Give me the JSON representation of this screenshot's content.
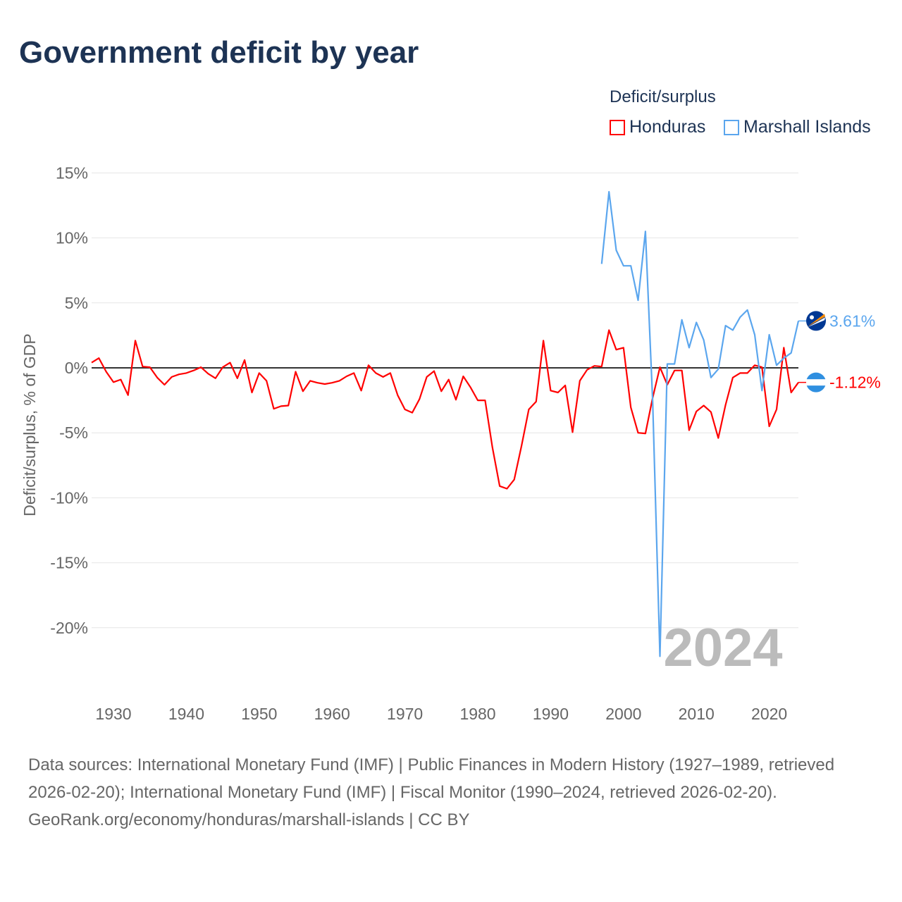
{
  "title": "Government deficit by year",
  "legend": {
    "title": "Deficit/surplus",
    "items": [
      {
        "label": "Honduras",
        "color": "#ff0000"
      },
      {
        "label": "Marshall Islands",
        "color": "#5ba6ee"
      }
    ]
  },
  "footer": {
    "sources": "Data sources: International Monetary Fund (IMF) | Public Finances in Modern History (1927–1989, retrieved 2026-02-20); International Monetary Fund (IMF) | Fiscal Monitor (1990–2024, retrieved 2026-02-20).",
    "credit": "GeoRank.org/economy/honduras/marshall-islands | CC BY"
  },
  "chart_data": {
    "type": "line",
    "title": "Government deficit by year",
    "xlabel": "",
    "ylabel": "Deficit/surplus, % of GDP",
    "xlim": [
      1927,
      2024
    ],
    "ylim": [
      -24,
      16
    ],
    "x_ticks": [
      1930,
      1940,
      1950,
      1960,
      1970,
      1980,
      1990,
      2000,
      2010,
      2020
    ],
    "y_ticks": [
      15,
      10,
      5,
      0,
      -5,
      -10,
      -15,
      -20
    ],
    "y_tick_labels": [
      "15%",
      "10%",
      "5%",
      "0%",
      "-5%",
      "-10%",
      "-15%",
      "-20%"
    ],
    "grid": true,
    "legend_position": "top-right",
    "year_label": "2024",
    "series": [
      {
        "name": "Honduras",
        "color": "#ff0000",
        "start_year": 1927,
        "end_label": "-1.12%",
        "values": [
          0.4,
          0.75,
          -0.3,
          -1.1,
          -0.9,
          -2.1,
          2.1,
          0.1,
          0.05,
          -0.75,
          -1.3,
          -0.7,
          -0.5,
          -0.4,
          -0.2,
          0.05,
          -0.45,
          -0.8,
          0.05,
          0.4,
          -0.8,
          0.6,
          -1.9,
          -0.4,
          -1.0,
          -3.15,
          -2.95,
          -2.9,
          -0.3,
          -1.8,
          -1.0,
          -1.15,
          -1.25,
          -1.15,
          -1.0,
          -0.65,
          -0.4,
          -1.75,
          0.2,
          -0.4,
          -0.7,
          -0.4,
          -2.1,
          -3.2,
          -3.45,
          -2.4,
          -0.7,
          -0.25,
          -1.8,
          -0.9,
          -2.45,
          -0.65,
          -1.5,
          -2.5,
          -2.5,
          -6.1,
          -9.1,
          -9.3,
          -8.6,
          -6.0,
          -3.2,
          -2.6,
          2.1,
          -1.75,
          -1.9,
          -1.35,
          -4.95,
          -1.0,
          -0.15,
          0.15,
          0.1,
          2.9,
          1.4,
          1.55,
          -3.05,
          -5.0,
          -5.05,
          -2.3,
          0.05,
          -1.3,
          -0.2,
          -0.2,
          -4.8,
          -3.35,
          -2.9,
          -3.4,
          -5.4,
          -2.85,
          -0.75,
          -0.4,
          -0.4,
          0.2,
          0.05,
          -4.5,
          -3.2,
          1.55,
          -1.9,
          -1.12
        ]
      },
      {
        "name": "Marshall Islands",
        "color": "#5ba6ee",
        "start_year": 1997,
        "end_label": "3.61%",
        "values": [
          8.0,
          13.55,
          9.05,
          7.85,
          7.85,
          5.2,
          10.5,
          -2.6,
          -22.2,
          0.3,
          0.3,
          3.7,
          1.55,
          3.5,
          2.15,
          -0.75,
          -0.1,
          3.25,
          2.9,
          3.9,
          4.45,
          2.55,
          -1.75,
          2.55,
          0.2,
          0.75,
          1.15,
          3.61
        ]
      }
    ]
  }
}
